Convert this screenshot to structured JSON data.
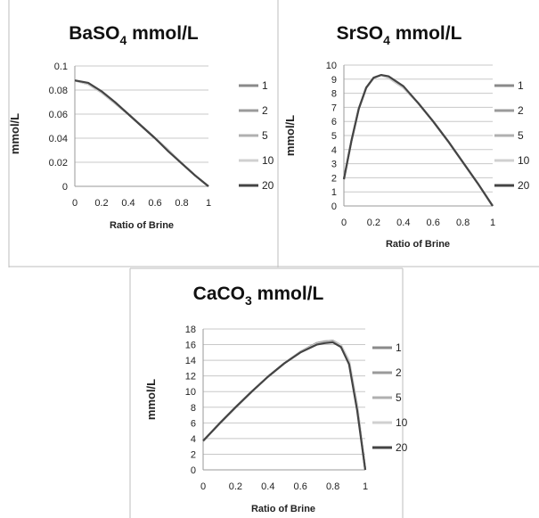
{
  "chart_data": [
    {
      "type": "line",
      "title_main": "BaSO",
      "title_sub": "4",
      "title_rest": " mmol/L",
      "xlabel": "Ratio of Brine",
      "ylabel": "mmol/L",
      "xlim": [
        0,
        1
      ],
      "ylim": [
        0,
        0.1
      ],
      "x_ticks": [
        "0",
        "0.2",
        "0.4",
        "0.6",
        "0.8",
        "1"
      ],
      "y_ticks": [
        "0",
        "0.02",
        "0.04",
        "0.06",
        "0.08",
        "0.1"
      ],
      "grid": true,
      "legend": "right",
      "series": [
        {
          "name": "1",
          "color": "#8a8a8a",
          "x": [
            0,
            0.1,
            0.2,
            0.3,
            0.4,
            0.5,
            0.6,
            0.7,
            0.8,
            0.9,
            1.0
          ],
          "y": [
            0.088,
            0.085,
            0.078,
            0.069,
            0.06,
            0.05,
            0.04,
            0.03,
            0.019,
            0.009,
            0
          ]
        },
        {
          "name": "2",
          "color": "#9a9a9a",
          "x": [
            0,
            0.1,
            0.2,
            0.3,
            0.4,
            0.5,
            0.6,
            0.7,
            0.8,
            0.9,
            1.0
          ],
          "y": [
            0.088,
            0.085,
            0.078,
            0.069,
            0.06,
            0.05,
            0.04,
            0.03,
            0.019,
            0.009,
            0
          ]
        },
        {
          "name": "5",
          "color": "#b0b0b0",
          "x": [
            0,
            0.1,
            0.2,
            0.3,
            0.4,
            0.5,
            0.6,
            0.7,
            0.8,
            0.9,
            1.0
          ],
          "y": [
            0.088,
            0.085,
            0.078,
            0.069,
            0.06,
            0.05,
            0.04,
            0.03,
            0.019,
            0.009,
            0
          ]
        },
        {
          "name": "10",
          "color": "#d0d0d0",
          "x": [
            0,
            0.1,
            0.2,
            0.3,
            0.4,
            0.5,
            0.6,
            0.7,
            0.8,
            0.9,
            1.0
          ],
          "y": [
            0.088,
            0.085,
            0.078,
            0.069,
            0.06,
            0.05,
            0.04,
            0.03,
            0.019,
            0.009,
            0
          ]
        },
        {
          "name": "20",
          "color": "#444444",
          "x": [
            0,
            0.1,
            0.2,
            0.3,
            0.4,
            0.5,
            0.6,
            0.7,
            0.8,
            0.9,
            1.0
          ],
          "y": [
            0.088,
            0.086,
            0.079,
            0.07,
            0.06,
            0.05,
            0.04,
            0.029,
            0.019,
            0.009,
            0
          ]
        }
      ]
    },
    {
      "type": "line",
      "title_main": "SrSO",
      "title_sub": "4",
      "title_rest": " mmol/L",
      "xlabel": "Ratio of Brine",
      "ylabel": "mmol/L",
      "xlim": [
        0,
        1
      ],
      "ylim": [
        0,
        10
      ],
      "x_ticks": [
        "0",
        "0.2",
        "0.4",
        "0.6",
        "0.8",
        "1"
      ],
      "y_ticks": [
        "0",
        "1",
        "2",
        "3",
        "4",
        "5",
        "6",
        "7",
        "8",
        "9",
        "10"
      ],
      "grid": true,
      "legend": "right",
      "series": [
        {
          "name": "1",
          "color": "#8a8a8a",
          "x": [
            0,
            0.05,
            0.1,
            0.15,
            0.2,
            0.25,
            0.3,
            0.4,
            0.5,
            0.6,
            0.7,
            0.8,
            0.9,
            1.0
          ],
          "y": [
            1.9,
            4.6,
            6.9,
            8.4,
            9.1,
            9.3,
            9.1,
            8.4,
            7.3,
            6.0,
            4.6,
            3.1,
            1.6,
            0
          ]
        },
        {
          "name": "2",
          "color": "#9a9a9a",
          "x": [
            0,
            0.05,
            0.1,
            0.15,
            0.2,
            0.25,
            0.3,
            0.4,
            0.5,
            0.6,
            0.7,
            0.8,
            0.9,
            1.0
          ],
          "y": [
            1.9,
            4.6,
            6.9,
            8.4,
            9.1,
            9.3,
            9.1,
            8.4,
            7.3,
            6.0,
            4.6,
            3.1,
            1.6,
            0
          ]
        },
        {
          "name": "5",
          "color": "#b0b0b0",
          "x": [
            0,
            0.05,
            0.1,
            0.15,
            0.2,
            0.25,
            0.3,
            0.4,
            0.5,
            0.6,
            0.7,
            0.8,
            0.9,
            1.0
          ],
          "y": [
            1.9,
            4.6,
            6.9,
            8.4,
            9.1,
            9.3,
            9.1,
            8.4,
            7.3,
            6.0,
            4.6,
            3.1,
            1.6,
            0
          ]
        },
        {
          "name": "10",
          "color": "#d0d0d0",
          "x": [
            0,
            0.05,
            0.1,
            0.15,
            0.2,
            0.25,
            0.3,
            0.4,
            0.5,
            0.6,
            0.7,
            0.8,
            0.9,
            1.0
          ],
          "y": [
            1.9,
            4.6,
            6.9,
            8.4,
            9.1,
            9.3,
            9.1,
            8.4,
            7.3,
            6.0,
            4.6,
            3.1,
            1.6,
            0
          ]
        },
        {
          "name": "20",
          "color": "#444444",
          "x": [
            0,
            0.05,
            0.1,
            0.15,
            0.2,
            0.25,
            0.3,
            0.4,
            0.5,
            0.6,
            0.7,
            0.8,
            0.9,
            1.0
          ],
          "y": [
            1.9,
            4.6,
            6.9,
            8.4,
            9.1,
            9.3,
            9.2,
            8.5,
            7.3,
            6.0,
            4.6,
            3.1,
            1.6,
            0
          ]
        }
      ]
    },
    {
      "type": "line",
      "title_main": "CaCO",
      "title_sub": "3",
      "title_rest": " mmol/L",
      "xlabel": "Ratio of Brine",
      "ylabel": "mmol/L",
      "xlim": [
        0,
        1
      ],
      "ylim": [
        0,
        18
      ],
      "x_ticks": [
        "0",
        "0.2",
        "0.4",
        "0.6",
        "0.8",
        "1"
      ],
      "y_ticks": [
        "0",
        "2",
        "4",
        "6",
        "8",
        "10",
        "12",
        "14",
        "16",
        "18"
      ],
      "grid": true,
      "legend": "right",
      "series": [
        {
          "name": "1",
          "color": "#8a8a8a",
          "x": [
            0,
            0.1,
            0.2,
            0.3,
            0.4,
            0.5,
            0.6,
            0.7,
            0.75,
            0.8,
            0.85,
            0.9,
            0.95,
            1.0
          ],
          "y": [
            3.7,
            5.9,
            8.0,
            10.0,
            11.9,
            13.6,
            15.1,
            16.2,
            16.4,
            16.5,
            15.9,
            13.8,
            8.0,
            0
          ]
        },
        {
          "name": "2",
          "color": "#9a9a9a",
          "x": [
            0,
            0.1,
            0.2,
            0.3,
            0.4,
            0.5,
            0.6,
            0.7,
            0.75,
            0.8,
            0.85,
            0.9,
            0.95,
            1.0
          ],
          "y": [
            3.7,
            5.9,
            8.0,
            10.0,
            11.9,
            13.6,
            15.1,
            16.2,
            16.4,
            16.5,
            15.9,
            13.9,
            8.2,
            0
          ]
        },
        {
          "name": "5",
          "color": "#b0b0b0",
          "x": [
            0,
            0.1,
            0.2,
            0.3,
            0.4,
            0.5,
            0.6,
            0.7,
            0.75,
            0.8,
            0.85,
            0.9,
            0.95,
            1.0
          ],
          "y": [
            3.7,
            5.9,
            8.0,
            10.0,
            11.9,
            13.6,
            15.1,
            16.1,
            16.3,
            16.4,
            15.8,
            13.8,
            8.1,
            0
          ]
        },
        {
          "name": "10",
          "color": "#d0d0d0",
          "x": [
            0,
            0.1,
            0.2,
            0.3,
            0.4,
            0.5,
            0.6,
            0.7,
            0.75,
            0.8,
            0.85,
            0.9,
            0.95,
            1.0
          ],
          "y": [
            3.7,
            5.9,
            8.0,
            10.0,
            11.9,
            13.6,
            15.1,
            16.1,
            16.3,
            16.4,
            15.9,
            14.0,
            8.3,
            0
          ]
        },
        {
          "name": "20",
          "color": "#444444",
          "x": [
            0,
            0.1,
            0.2,
            0.3,
            0.4,
            0.5,
            0.6,
            0.7,
            0.75,
            0.8,
            0.85,
            0.9,
            0.95,
            1.0
          ],
          "y": [
            3.7,
            5.9,
            8.0,
            10.0,
            11.9,
            13.6,
            15.0,
            16.0,
            16.2,
            16.3,
            15.7,
            13.5,
            7.6,
            0
          ]
        }
      ]
    }
  ]
}
